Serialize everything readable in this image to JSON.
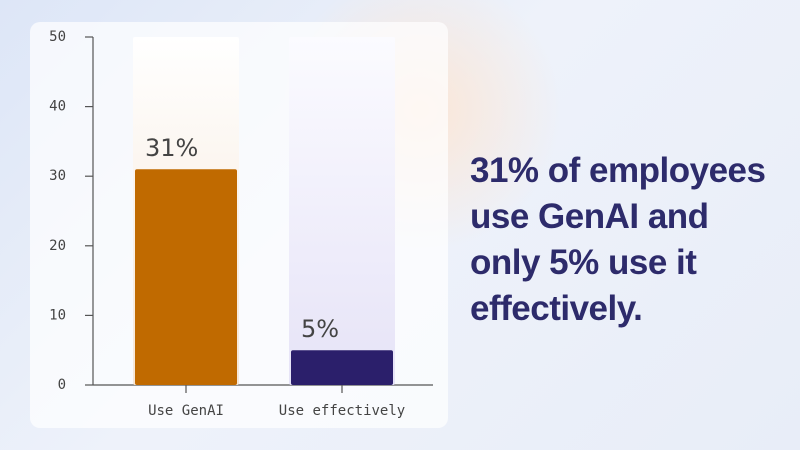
{
  "chart_data": {
    "type": "bar",
    "categories": [
      "Use GenAI",
      "Use effectively"
    ],
    "values": [
      31,
      5
    ],
    "value_labels": [
      "31%",
      "5%"
    ],
    "colors": [
      "#c06a00",
      "#2b1f6b"
    ],
    "ylim": [
      0,
      50
    ],
    "yticks": [
      0,
      10,
      20,
      30,
      40,
      50
    ],
    "annotation": "31% of employees use GenAI and only 5% use it effectively."
  }
}
